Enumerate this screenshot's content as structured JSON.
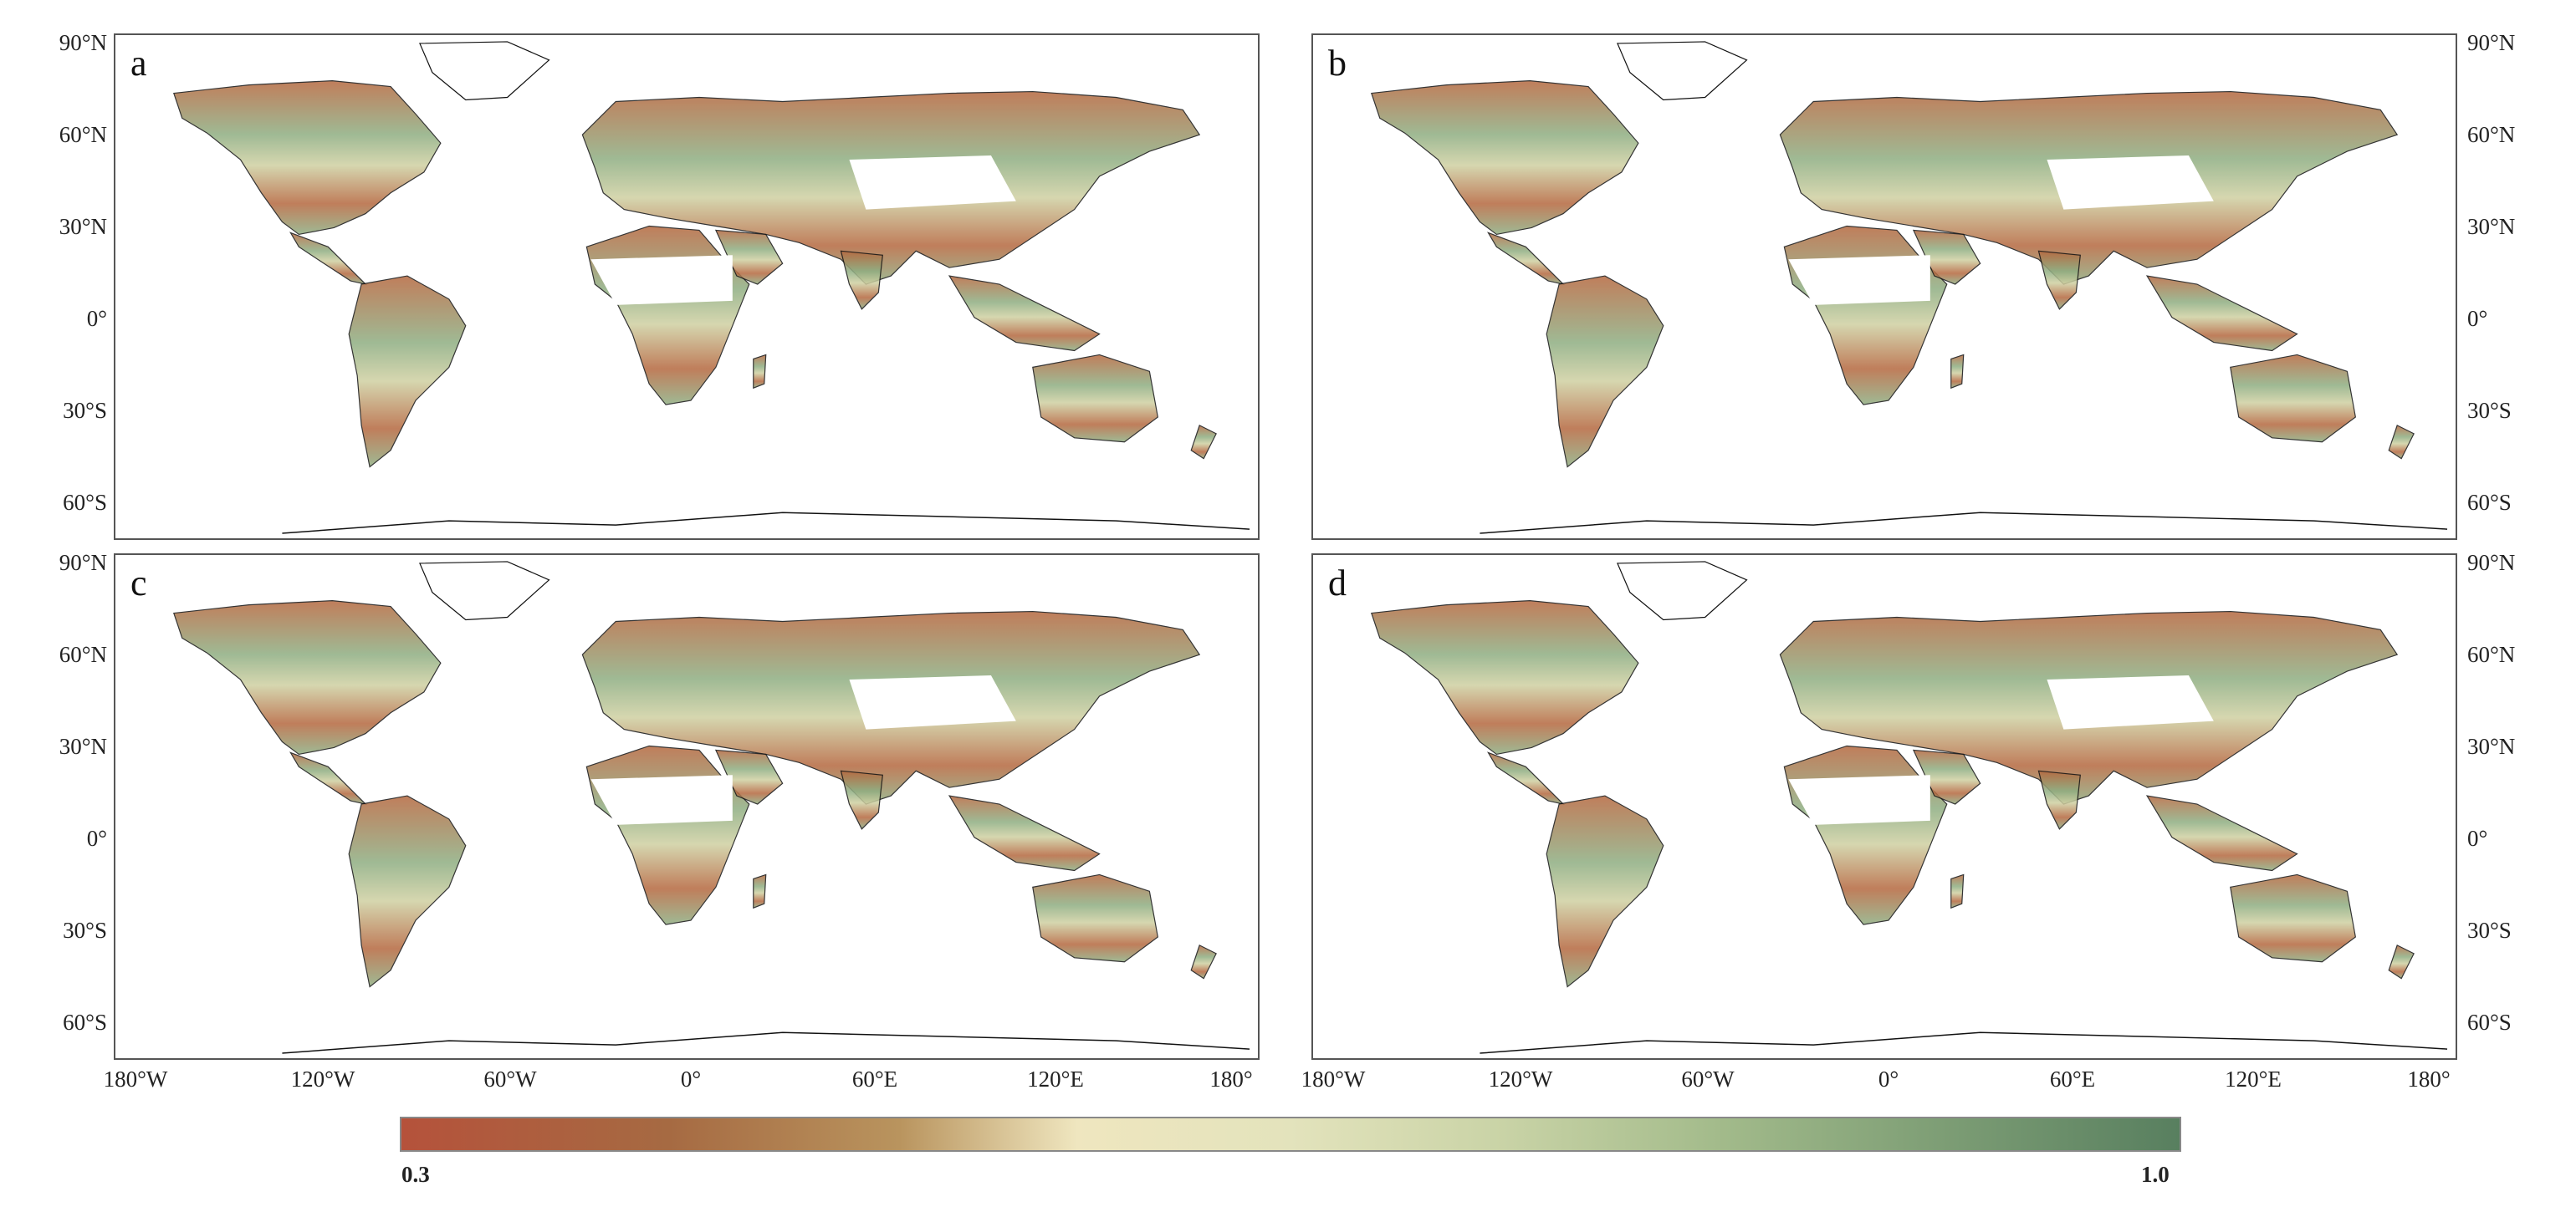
{
  "panels": [
    {
      "id": "a",
      "label": "a"
    },
    {
      "id": "b",
      "label": "b"
    },
    {
      "id": "c",
      "label": "c"
    },
    {
      "id": "d",
      "label": "d"
    }
  ],
  "lat_ticks": [
    "90°N",
    "60°N",
    "30°N",
    "0°",
    "30°S",
    "60°S"
  ],
  "lon_ticks": [
    "180°W",
    "120°W",
    "60°W",
    "0°",
    "60°E",
    "120°E",
    "180°"
  ],
  "colorbar": {
    "min_label": "0.3",
    "max_label": "1.0",
    "low_color": "#b5523b",
    "mid_color": "#efe6bf",
    "high_color": "#587f5f"
  },
  "colors": {
    "land_low": "#b5683f",
    "land_mid": "#cfd0a2",
    "land_high": "#8fae82",
    "coastline": "#111111",
    "frame": "#555555"
  }
}
